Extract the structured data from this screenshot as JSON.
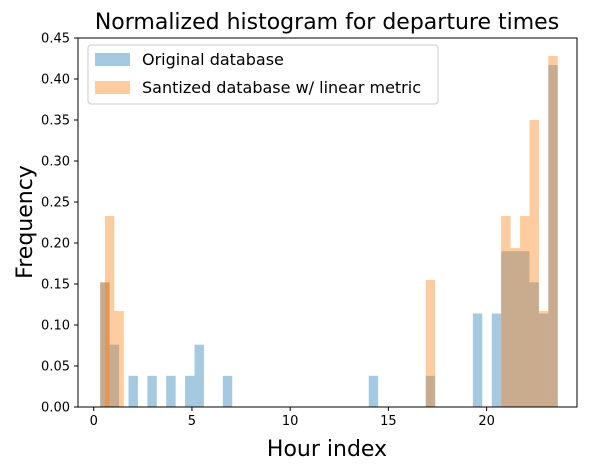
{
  "chart_data": {
    "type": "bar",
    "title": "Normalized histogram for departure times",
    "xlabel": "Hour index",
    "ylabel": "Frequency",
    "xlim": [
      -0.8,
      24.6
    ],
    "ylim": [
      0,
      0.45
    ],
    "xticks": [
      0,
      5,
      10,
      15,
      20
    ],
    "yticks": [
      0.0,
      0.05,
      0.1,
      0.15,
      0.2,
      0.25,
      0.3,
      0.35,
      0.4,
      0.45
    ],
    "bin_width": 0.48,
    "grid": false,
    "legend_position": "upper-left",
    "series": [
      {
        "name": "Original database",
        "color": "#1f77b4",
        "opacity": 0.4,
        "bins": [
          {
            "x0": 0.33,
            "value": 0.152
          },
          {
            "x0": 0.81,
            "value": 0.076
          },
          {
            "x0": 1.77,
            "value": 0.038
          },
          {
            "x0": 2.73,
            "value": 0.038
          },
          {
            "x0": 3.69,
            "value": 0.038
          },
          {
            "x0": 4.65,
            "value": 0.038
          },
          {
            "x0": 5.13,
            "value": 0.076
          },
          {
            "x0": 6.57,
            "value": 0.038
          },
          {
            "x0": 14.0,
            "value": 0.038
          },
          {
            "x0": 16.9,
            "value": 0.038
          },
          {
            "x0": 19.3,
            "value": 0.114
          },
          {
            "x0": 20.26,
            "value": 0.114
          },
          {
            "x0": 20.74,
            "value": 0.19
          },
          {
            "x0": 21.22,
            "value": 0.19
          },
          {
            "x0": 21.7,
            "value": 0.19
          },
          {
            "x0": 22.18,
            "value": 0.152
          },
          {
            "x0": 22.66,
            "value": 0.114
          },
          {
            "x0": 23.14,
            "value": 0.417
          }
        ]
      },
      {
        "name": "Santized database w/ linear metric",
        "color": "#ff7f0e",
        "opacity": 0.4,
        "bins": [
          {
            "x0": 0.33,
            "value": 0.152
          },
          {
            "x0": 0.57,
            "value": 0.233
          },
          {
            "x0": 1.05,
            "value": 0.117
          },
          {
            "x0": 16.9,
            "value": 0.155
          },
          {
            "x0": 20.74,
            "value": 0.233
          },
          {
            "x0": 21.22,
            "value": 0.194
          },
          {
            "x0": 21.7,
            "value": 0.233
          },
          {
            "x0": 22.18,
            "value": 0.35
          },
          {
            "x0": 22.66,
            "value": 0.117
          },
          {
            "x0": 23.14,
            "value": 0.428
          }
        ]
      }
    ]
  }
}
